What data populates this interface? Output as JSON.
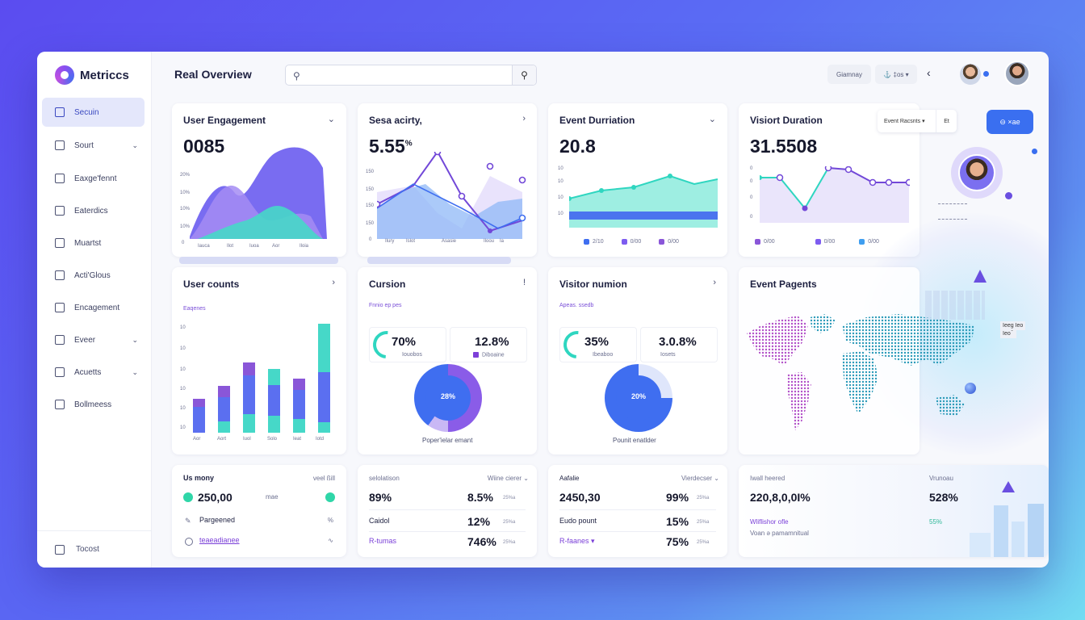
{
  "app": {
    "name": "Metriccs",
    "page_title": "Real Overview"
  },
  "header": {
    "search_placeholder": "",
    "pill_1": "Giamnay",
    "pill_2": "⚓ ‡os ▾",
    "accent": "#3a6ff0"
  },
  "sidebar": {
    "items": [
      {
        "label": "Secuin",
        "icon": "inbox-icon",
        "chevron": ""
      },
      {
        "label": "Sourt",
        "icon": "list-icon",
        "chevron": "⌄"
      },
      {
        "label": "Eaxge'fennt",
        "icon": "chart-icon",
        "chevron": ""
      },
      {
        "label": "Eaterdics",
        "icon": "search-icon",
        "chevron": ""
      },
      {
        "label": "Muartst",
        "icon": "chart-icon",
        "chevron": ""
      },
      {
        "label": "Acti'Glous",
        "icon": "table-icon",
        "chevron": ""
      },
      {
        "label": "Encagement",
        "icon": "chart-icon",
        "chevron": ""
      },
      {
        "label": "Eveer",
        "icon": "shield-icon",
        "chevron": "⌄"
      },
      {
        "label": "Acuetts",
        "icon": "bar-icon",
        "chevron": "⌄"
      },
      {
        "label": "Bollmeess",
        "icon": "list-icon",
        "chevron": ""
      }
    ],
    "footer_label": "Tocost"
  },
  "cards": {
    "user_engagement": {
      "title": "User Engagement",
      "value": "0085",
      "chevron": "⌄",
      "yticks": [
        "20%",
        "10%",
        "10%",
        "10%",
        "0"
      ],
      "xticks": [
        "Iauca",
        "Ilot",
        "Iuoa",
        "Aor",
        "Iloia"
      ]
    },
    "sesa_activity": {
      "title": "Sesa acirty,",
      "value": "5.55",
      "value_sup": "%",
      "chevron": "›",
      "yticks": [
        "150",
        "150",
        "150",
        "150",
        "0"
      ],
      "xticks": [
        "Ilury",
        "Islot",
        "Asasie",
        "Iloou",
        "Ia"
      ]
    },
    "event_duration": {
      "title": "Event Durriation",
      "value": "20.8",
      "chevron": "⌄",
      "yticks": [
        "10",
        "10",
        "10",
        "10"
      ],
      "legend": [
        "2/10",
        "0/00",
        "0/00"
      ]
    },
    "visitor_duration": {
      "title": "Visiort Duration",
      "value": "31.5508",
      "yticks": [
        "0",
        "0",
        "0",
        "0"
      ],
      "legend": [
        "0/00",
        "0/00",
        "0/00"
      ],
      "filter_label": "Event Racsnts ▾",
      "filter_side": "Et",
      "button_label": "⊖ ×ae"
    },
    "user_counts": {
      "title": "User counts",
      "chevron": "›",
      "subtitle": "Eaqenes",
      "yticks": [
        "10",
        "10",
        "10",
        "10",
        "10",
        "10"
      ],
      "xticks": [
        "Aor",
        "Aort",
        "Iuol",
        "Solo",
        "Ieat",
        "Iotd"
      ]
    },
    "cursion": {
      "title": "Cursion",
      "chevron": "!",
      "subtitle": "Fnnio ep pes",
      "stat_1": "70%",
      "stat_1_cap": "Iouobos",
      "stat_2": "12.8%",
      "stat_2_cap": "Diboaine",
      "donut_center": "28%",
      "donut_caption": "Poper'ielar emant"
    },
    "visitor_numion": {
      "title": "Visitor numion",
      "chevron": "›",
      "subtitle": "Apeas.   ssedb",
      "stat_1": "35%",
      "stat_1_cap": "Ibeaboo",
      "stat_2": "3.0.8%",
      "stat_2_cap": "Iosets",
      "donut_center": "20%",
      "donut_caption": "Pounit enatlder"
    },
    "event_pagents": {
      "title": "Event Pagents",
      "tag": "Ieeg Ieo"
    },
    "us_mony": {
      "title": "Us mony",
      "corner": "veel ßill",
      "rows": [
        {
          "label": "250,00",
          "small": "mae",
          "right": ""
        },
        {
          "label": "Pargeened",
          "small": "",
          "right": "%"
        },
        {
          "label": "teaeadianee",
          "small": "",
          "right": "∿"
        }
      ]
    },
    "stat_block_2": {
      "left_head": "selolatison",
      "right_head": "Wiine cierer ⌄",
      "rows": [
        {
          "label": "89%",
          "value": "8.5%",
          "pct": "25%a"
        },
        {
          "label": "Caidol",
          "value": "12%",
          "pct": "25%a"
        },
        {
          "label": "R-tumas",
          "value": "746%",
          "pct": "25%a"
        }
      ]
    },
    "stat_block_3": {
      "left_head": "Aafalie",
      "right_head": "Vierdecser ⌄",
      "rows": [
        {
          "label": "2450,30",
          "value": "99%",
          "pct": "25%a"
        },
        {
          "label": "Eudo pount",
          "value": "15%",
          "pct": "25%a"
        },
        {
          "label": "R-faanes ▾",
          "value": "75%",
          "pct": "25%a"
        }
      ]
    },
    "stat_block_4": {
      "left_head": "Iwall heered",
      "right_head": "Vrunoau",
      "value": "220,8,0,0I%",
      "right_value": "528%",
      "line_1": "Wliflishor ofle",
      "line_2": "Voan ə pamamnitual",
      "right_small": "55%"
    }
  },
  "colors": {
    "purple": "#7d5cf0",
    "blue": "#3f6ef0",
    "teal": "#2fd6c0",
    "lavender": "#b9a6f5"
  }
}
